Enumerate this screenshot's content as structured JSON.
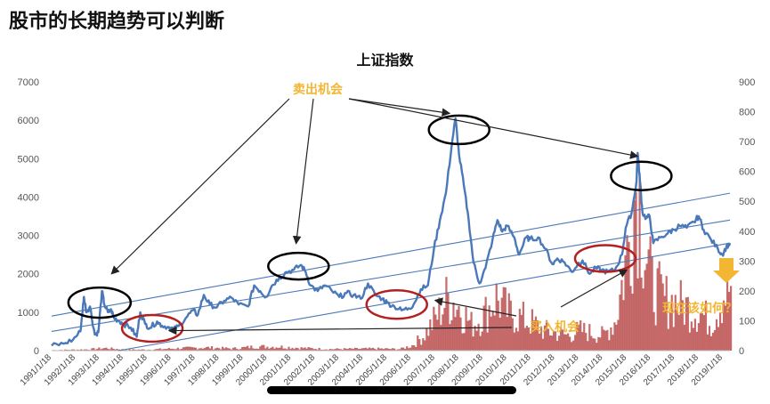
{
  "page_title": "股市的长期趋势可以判断",
  "chart_data": {
    "type": "line",
    "title": "上证指数",
    "xlabel": "",
    "ylabel": "",
    "x": [
      "1991/1/18",
      "1992/1/18",
      "1993/1/18",
      "1994/1/18",
      "1995/1/18",
      "1996/1/18",
      "1997/1/18",
      "1998/1/18",
      "1999/1/18",
      "2000/1/18",
      "2001/1/18",
      "2002/1/18",
      "2003/1/18",
      "2004/1/18",
      "2005/1/18",
      "2006/1/18",
      "2007/1/18",
      "2008/1/18",
      "2009/1/18",
      "2010/1/18",
      "2011/1/18",
      "2012/1/18",
      "2013/1/18",
      "2014/1/18",
      "2015/1/18",
      "2016/1/18",
      "2017/1/18",
      "2018/1/18",
      "2019/1/18"
    ],
    "ylim": [
      0,
      7000
    ],
    "y2lim": [
      0,
      900
    ],
    "yticks": [
      "0",
      "1000",
      "2000",
      "3000",
      "4000",
      "5000",
      "6000",
      "7000"
    ],
    "y2ticks": [
      "0",
      "100",
      "200",
      "300",
      "400",
      "500",
      "600",
      "700",
      "800",
      "900"
    ],
    "grid": false,
    "series": [
      {
        "values": [
          [
            1991.0,
            130
          ],
          [
            1991.5,
            180
          ],
          [
            1991.9,
            290
          ],
          [
            1992.2,
            500
          ],
          [
            1992.3,
            1100
          ],
          [
            1992.35,
            1400
          ],
          [
            1992.45,
            1000
          ],
          [
            1992.6,
            1150
          ],
          [
            1992.8,
            420
          ],
          [
            1992.95,
            480
          ],
          [
            1993.1,
            1550
          ],
          [
            1993.2,
            1200
          ],
          [
            1993.35,
            1000
          ],
          [
            1993.5,
            1050
          ],
          [
            1993.6,
            850
          ],
          [
            1993.8,
            780
          ],
          [
            1994.0,
            700
          ],
          [
            1994.3,
            600
          ],
          [
            1994.55,
            360
          ],
          [
            1994.7,
            1000
          ],
          [
            1994.9,
            700
          ],
          [
            1995.1,
            590
          ],
          [
            1995.4,
            760
          ],
          [
            1995.6,
            650
          ],
          [
            1995.9,
            610
          ],
          [
            1996.1,
            550
          ],
          [
            1996.3,
            640
          ],
          [
            1996.6,
            850
          ],
          [
            1996.9,
            1050
          ],
          [
            1997.1,
            930
          ],
          [
            1997.35,
            1450
          ],
          [
            1997.6,
            1200
          ],
          [
            1997.9,
            1130
          ],
          [
            1998.2,
            1300
          ],
          [
            1998.5,
            1380
          ],
          [
            1998.8,
            1200
          ],
          [
            1999.2,
            1150
          ],
          [
            1999.45,
            1700
          ],
          [
            1999.7,
            1550
          ],
          [
            1999.95,
            1400
          ],
          [
            2000.2,
            1700
          ],
          [
            2000.5,
            1900
          ],
          [
            2000.8,
            2050
          ],
          [
            2001.1,
            2100
          ],
          [
            2001.4,
            2230
          ],
          [
            2001.6,
            2050
          ],
          [
            2001.8,
            1700
          ],
          [
            2002.1,
            1550
          ],
          [
            2002.4,
            1700
          ],
          [
            2002.7,
            1550
          ],
          [
            2003.0,
            1400
          ],
          [
            2003.3,
            1500
          ],
          [
            2003.6,
            1450
          ],
          [
            2003.9,
            1350
          ],
          [
            2004.2,
            1750
          ],
          [
            2004.5,
            1450
          ],
          [
            2004.8,
            1350
          ],
          [
            2005.0,
            1250
          ],
          [
            2005.3,
            1150
          ],
          [
            2005.6,
            1050
          ],
          [
            2005.9,
            1100
          ],
          [
            2006.1,
            1200
          ],
          [
            2006.4,
            1600
          ],
          [
            2006.7,
            1700
          ],
          [
            2006.95,
            2650
          ],
          [
            2007.2,
            3400
          ],
          [
            2007.45,
            4100
          ],
          [
            2007.7,
            5400
          ],
          [
            2007.85,
            6050
          ],
          [
            2008.0,
            5100
          ],
          [
            2008.2,
            4300
          ],
          [
            2008.4,
            3400
          ],
          [
            2008.6,
            2300
          ],
          [
            2008.85,
            1750
          ],
          [
            2009.1,
            2150
          ],
          [
            2009.4,
            2900
          ],
          [
            2009.6,
            3400
          ],
          [
            2009.8,
            3100
          ],
          [
            2010.0,
            3250
          ],
          [
            2010.3,
            2950
          ],
          [
            2010.5,
            2500
          ],
          [
            2010.8,
            2950
          ],
          [
            2010.95,
            2900
          ],
          [
            2011.3,
            2950
          ],
          [
            2011.6,
            2650
          ],
          [
            2011.9,
            2250
          ],
          [
            2012.1,
            2400
          ],
          [
            2012.4,
            2300
          ],
          [
            2012.7,
            2050
          ],
          [
            2012.95,
            2250
          ],
          [
            2013.15,
            2350
          ],
          [
            2013.45,
            2000
          ],
          [
            2013.7,
            2150
          ],
          [
            2013.95,
            2100
          ],
          [
            2014.2,
            2050
          ],
          [
            2014.5,
            2100
          ],
          [
            2014.8,
            2500
          ],
          [
            2014.95,
            3200
          ],
          [
            2015.2,
            3600
          ],
          [
            2015.4,
            4400
          ],
          [
            2015.45,
            5150
          ],
          [
            2015.55,
            4400
          ],
          [
            2015.65,
            3600
          ],
          [
            2015.8,
            3450
          ],
          [
            2015.95,
            3500
          ],
          [
            2016.1,
            2800
          ],
          [
            2016.4,
            2950
          ],
          [
            2016.7,
            3050
          ],
          [
            2016.95,
            3150
          ],
          [
            2017.2,
            3250
          ],
          [
            2017.5,
            3200
          ],
          [
            2017.8,
            3350
          ],
          [
            2018.0,
            3500
          ],
          [
            2018.2,
            3150
          ],
          [
            2018.5,
            2900
          ],
          [
            2018.8,
            2650
          ],
          [
            2018.98,
            2500
          ],
          [
            2019.15,
            2700
          ],
          [
            2019.3,
            2800
          ]
        ]
      }
    ],
    "volume_profile": [
      [
        1991.0,
        2
      ],
      [
        1992.5,
        5
      ],
      [
        1993.2,
        10
      ],
      [
        1994.0,
        4
      ],
      [
        1995.0,
        4
      ],
      [
        1996.5,
        10
      ],
      [
        1997.5,
        12
      ],
      [
        1998.5,
        8
      ],
      [
        1999.5,
        16
      ],
      [
        2000.5,
        15
      ],
      [
        2001.5,
        10
      ],
      [
        2002.5,
        6
      ],
      [
        2003.5,
        7
      ],
      [
        2004.5,
        8
      ],
      [
        2005.5,
        6
      ],
      [
        2006.0,
        20
      ],
      [
        2006.5,
        60
      ],
      [
        2007.0,
        130
      ],
      [
        2007.5,
        210
      ],
      [
        2007.9,
        180
      ],
      [
        2008.5,
        100
      ],
      [
        2009.0,
        140
      ],
      [
        2009.5,
        210
      ],
      [
        2010.0,
        150
      ],
      [
        2010.5,
        130
      ],
      [
        2011.0,
        110
      ],
      [
        2011.5,
        80
      ],
      [
        2012.0,
        70
      ],
      [
        2012.5,
        60
      ],
      [
        2013.0,
        80
      ],
      [
        2013.5,
        70
      ],
      [
        2014.0,
        60
      ],
      [
        2014.5,
        120
      ],
      [
        2015.0,
        400
      ],
      [
        2015.4,
        700
      ],
      [
        2015.7,
        420
      ],
      [
        2016.0,
        260
      ],
      [
        2016.5,
        200
      ],
      [
        2017.0,
        190
      ],
      [
        2017.5,
        170
      ],
      [
        2018.0,
        150
      ],
      [
        2018.5,
        110
      ],
      [
        2019.0,
        220
      ],
      [
        2019.3,
        250
      ]
    ],
    "annotations": {
      "sell": "卖出机会",
      "buy": "买入机会",
      "now": "现在该如何？"
    },
    "colors": {
      "line": "#4a78b8",
      "volume": "#b33a3a",
      "channel": "#4a78b8",
      "sell_circle": "#000000",
      "buy_circle": "#b32020",
      "annotation": "#f2b632"
    }
  }
}
